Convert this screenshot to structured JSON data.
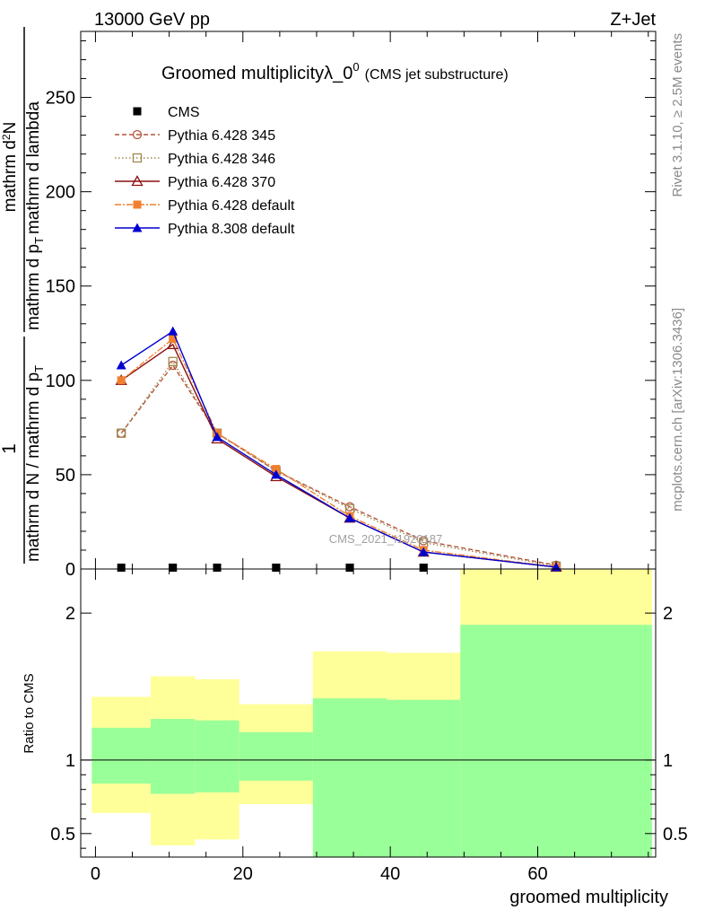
{
  "header": {
    "left": "13000 GeV pp",
    "right": "Z+Jet"
  },
  "side_labels": {
    "rivet": "Rivet 3.1.10, ≥ 2.5M events",
    "mcplots": "mcplots.cern.ch [arXiv:1306.3436]"
  },
  "watermark": "CMS_2021_I1920187",
  "chart_data": [
    {
      "type": "line",
      "title": "Groomed multiplicityλ_0",
      "title_sup": "0",
      "title_suffix": "(CMS jet substructure)",
      "xlabel": "groomed multiplicity",
      "ylabel_fraction": {
        "numerator_one": "1",
        "denominator": "mathrm d N / mathrm d p",
        "denominator_sub": "T",
        "numerator_right": "mathrm d",
        "numerator_right_sup": "2",
        "numerator_right_tail": "N",
        "denominator_right": "mathrm d p",
        "denominator_right_sub": "T",
        "denominator_right_tail": "mathrm d lambda"
      },
      "xlim": [
        -2,
        76
      ],
      "ylim": [
        0,
        285
      ],
      "yticks": [
        0,
        50,
        100,
        150,
        200,
        250
      ],
      "legend_position": "top-left",
      "series": [
        {
          "name": "CMS",
          "color": "#000000",
          "marker": "square-filled",
          "dash": "none",
          "x": [
            3.5,
            10.5,
            16.5,
            24.5,
            34.5,
            44.5,
            62.5
          ],
          "y": [
            0,
            0,
            0,
            0,
            0,
            0,
            0
          ]
        },
        {
          "name": "Pythia 6.428 345",
          "color": "#b5543a",
          "marker": "circle-open",
          "dash": "5,3",
          "x": [
            3.5,
            10.5,
            16.5,
            24.5,
            34.5,
            44.5,
            62.5
          ],
          "y": [
            72,
            108,
            72,
            52,
            33,
            15,
            2
          ]
        },
        {
          "name": "Pythia 6.428 346",
          "color": "#a08a50",
          "marker": "square-open",
          "dash": "1.5,2.5",
          "x": [
            3.5,
            10.5,
            16.5,
            24.5,
            34.5,
            44.5,
            62.5
          ],
          "y": [
            72,
            110,
            72,
            52,
            32,
            14,
            1.5
          ]
        },
        {
          "name": "Pythia 6.428 370",
          "color": "#8b1010",
          "marker": "triangle-open",
          "dash": "none",
          "x": [
            3.5,
            10.5,
            16.5,
            24.5,
            34.5,
            44.5,
            62.5
          ],
          "y": [
            100,
            119,
            69,
            49,
            27,
            9,
            1
          ]
        },
        {
          "name": "Pythia 6.428 default",
          "color": "#f08030",
          "marker": "square-filled",
          "dash": "7,2,2,2",
          "x": [
            3.5,
            10.5,
            16.5,
            24.5,
            34.5,
            44.5,
            62.5
          ],
          "y": [
            100,
            122,
            72,
            53,
            28,
            10,
            1
          ]
        },
        {
          "name": "Pythia 8.308 default",
          "color": "#0000d0",
          "marker": "triangle-filled",
          "dash": "none",
          "x": [
            3.5,
            10.5,
            16.5,
            24.5,
            34.5,
            44.5,
            62.5
          ],
          "y": [
            108,
            126,
            70,
            50,
            27,
            9,
            1
          ]
        }
      ]
    },
    {
      "type": "area",
      "ylabel": "Ratio to CMS",
      "xlabel": "groomed multiplicity",
      "xlim": [
        -2,
        76
      ],
      "ylim": [
        0.34,
        2.3
      ],
      "xticks": [
        0,
        20,
        40,
        60
      ],
      "yticks": [
        0.5,
        1,
        2
      ],
      "reference_line": 1,
      "bins": [
        {
          "x0": -0.5,
          "x1": 7.5,
          "green": [
            0.84,
            1.22
          ],
          "yellow": [
            0.64,
            1.43
          ]
        },
        {
          "x0": 7.5,
          "x1": 13.5,
          "green": [
            0.77,
            1.28
          ],
          "yellow": [
            0.42,
            1.57
          ]
        },
        {
          "x0": 13.5,
          "x1": 19.5,
          "green": [
            0.78,
            1.27
          ],
          "yellow": [
            0.46,
            1.55
          ]
        },
        {
          "x0": 19.5,
          "x1": 29.5,
          "green": [
            0.86,
            1.19
          ],
          "yellow": [
            0.7,
            1.38
          ]
        },
        {
          "x0": 29.5,
          "x1": 39.5,
          "green": [
            0.34,
            1.42
          ],
          "yellow": [
            0.34,
            1.74
          ]
        },
        {
          "x0": 39.5,
          "x1": 49.5,
          "green": [
            0.34,
            1.41
          ],
          "yellow": [
            0.34,
            1.73
          ]
        },
        {
          "x0": 49.5,
          "x1": 75.5,
          "green": [
            0.34,
            1.92
          ],
          "yellow": [
            0.34,
            2.3
          ]
        }
      ],
      "colors": {
        "green": "#99ff99",
        "yellow": "#ffff99"
      }
    }
  ]
}
